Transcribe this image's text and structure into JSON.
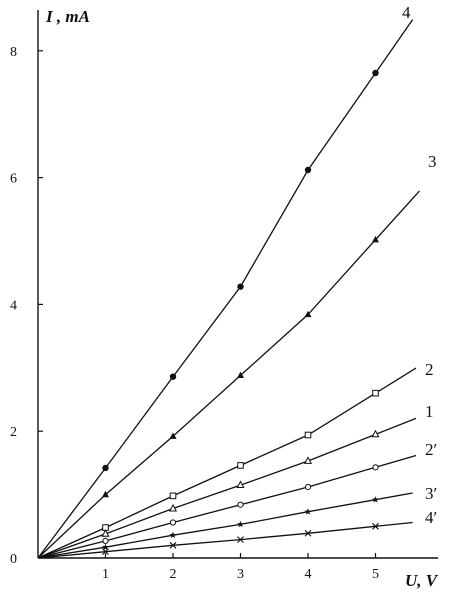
{
  "chart_data": {
    "type": "line",
    "ylabel": "I , mA",
    "xlabel": "U, V",
    "xlim": [
      0,
      5.9
    ],
    "ylim": [
      0,
      8.6
    ],
    "x_ticks": [
      1,
      2,
      3,
      4,
      5
    ],
    "y_ticks": [
      0,
      2,
      4,
      6,
      8
    ],
    "grid": false,
    "series": [
      {
        "name": "4",
        "marker": "circle-filled",
        "x": [
          1,
          2,
          3,
          4,
          5
        ],
        "y": [
          1.42,
          2.86,
          4.28,
          6.12,
          7.65
        ]
      },
      {
        "name": "3",
        "marker": "triangle-filled",
        "x": [
          1,
          2,
          3,
          4,
          5
        ],
        "y": [
          1.0,
          1.92,
          2.88,
          3.84,
          5.02
        ]
      },
      {
        "name": "2",
        "marker": "square-open",
        "x": [
          1,
          2,
          3,
          4,
          5
        ],
        "y": [
          0.48,
          0.98,
          1.46,
          1.94,
          2.6
        ]
      },
      {
        "name": "1",
        "marker": "triangle-open",
        "x": [
          1,
          2,
          3,
          4,
          5
        ],
        "y": [
          0.38,
          0.78,
          1.15,
          1.53,
          1.95
        ]
      },
      {
        "name": "2′",
        "marker": "circle-open",
        "x": [
          1,
          2,
          3,
          4,
          5
        ],
        "y": [
          0.27,
          0.56,
          0.84,
          1.12,
          1.43
        ]
      },
      {
        "name": "3′",
        "marker": "star",
        "x": [
          1,
          2,
          3,
          4,
          5
        ],
        "y": [
          0.17,
          0.36,
          0.53,
          0.73,
          0.92
        ]
      },
      {
        "name": "4′",
        "marker": "cross",
        "x": [
          1,
          2,
          3,
          4,
          5
        ],
        "y": [
          0.1,
          0.2,
          0.29,
          0.39,
          0.5
        ]
      }
    ],
    "colors": {
      "ink": "#111111"
    }
  }
}
